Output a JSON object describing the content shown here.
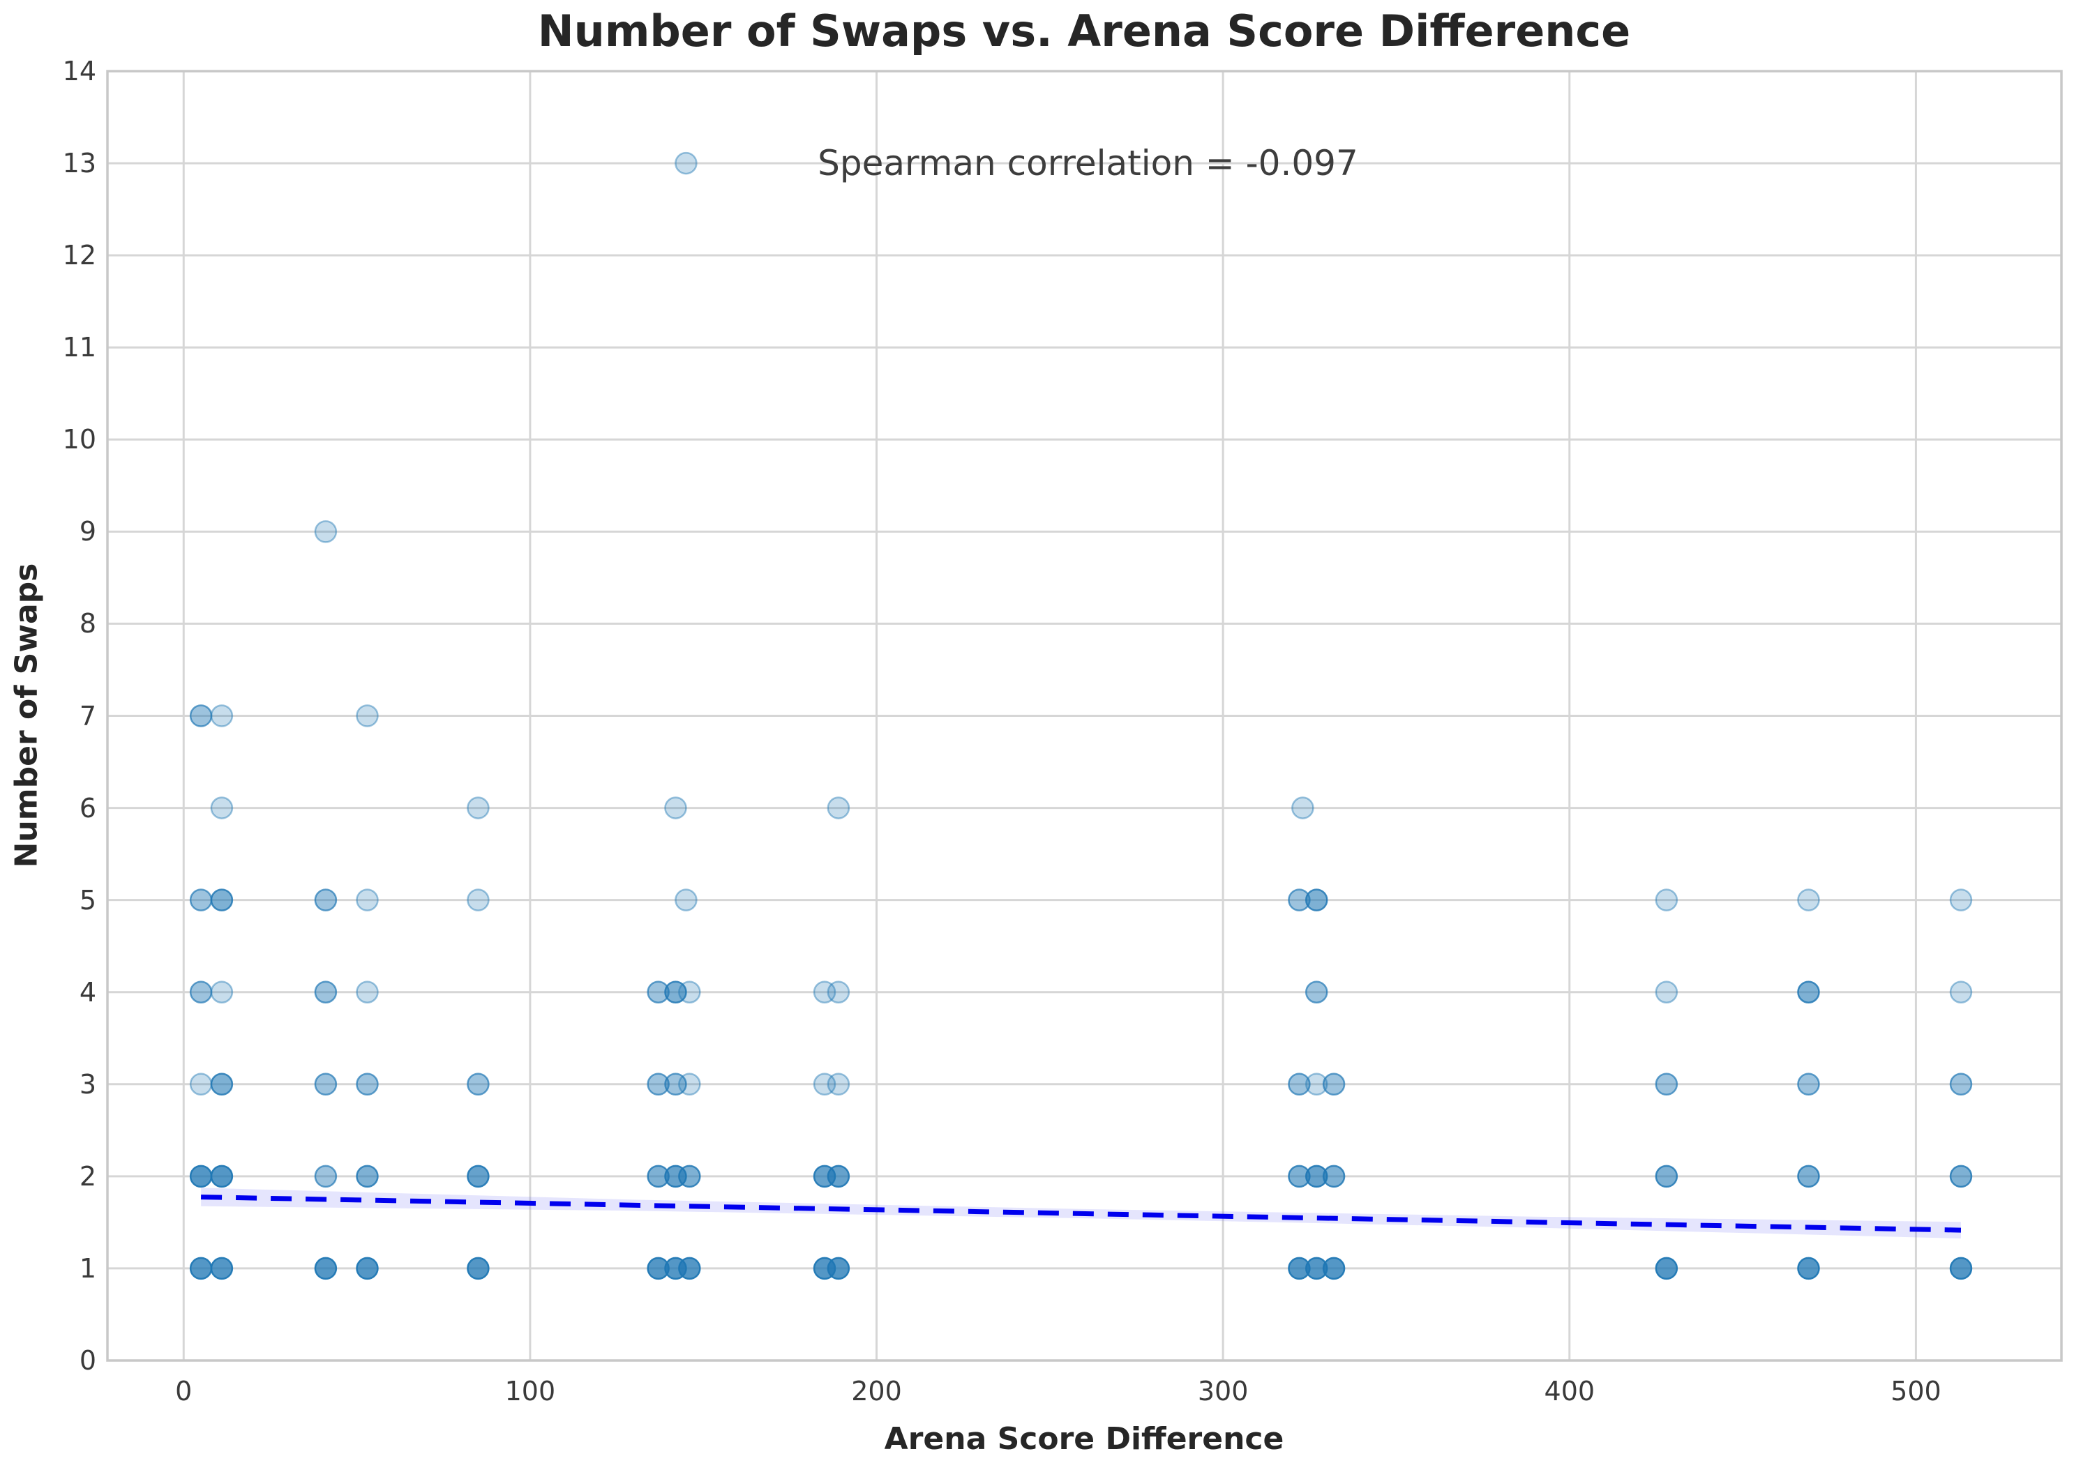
{
  "figure": {
    "title": "Number of Swaps vs. Arena Score Difference",
    "xlabel": "Arena Score Difference",
    "ylabel": "Number of Swaps"
  },
  "chart_data": {
    "type": "scatter",
    "title": "Number of Swaps vs. Arena Score Difference",
    "xlabel": "Arena Score Difference",
    "ylabel": "Number of Swaps",
    "xlim": [
      -22,
      542
    ],
    "ylim": [
      0,
      14
    ],
    "x_ticks": [
      0,
      100,
      200,
      300,
      400,
      500
    ],
    "y_ticks": [
      0,
      1,
      2,
      3,
      4,
      5,
      6,
      7,
      8,
      9,
      10,
      11,
      12,
      13,
      14
    ],
    "grid": true,
    "legend": "none",
    "annotation": {
      "text": "Spearman correlation = -0.097",
      "x": 261,
      "y": 13.0
    },
    "marker": {
      "color": "#1f77b4",
      "base_alpha": 0.25,
      "edge_alpha": 0.45,
      "radius": 15
    },
    "points": [
      {
        "x": 5,
        "y": 1,
        "n": 5
      },
      {
        "x": 11,
        "y": 1,
        "n": 5
      },
      {
        "x": 41,
        "y": 1,
        "n": 5
      },
      {
        "x": 53,
        "y": 1,
        "n": 5
      },
      {
        "x": 85,
        "y": 1,
        "n": 5
      },
      {
        "x": 137,
        "y": 1,
        "n": 5
      },
      {
        "x": 142,
        "y": 1,
        "n": 5
      },
      {
        "x": 146,
        "y": 1,
        "n": 5
      },
      {
        "x": 185,
        "y": 1,
        "n": 5
      },
      {
        "x": 189,
        "y": 1,
        "n": 5
      },
      {
        "x": 322,
        "y": 1,
        "n": 5
      },
      {
        "x": 327,
        "y": 1,
        "n": 5
      },
      {
        "x": 332,
        "y": 1,
        "n": 5
      },
      {
        "x": 428,
        "y": 1,
        "n": 5
      },
      {
        "x": 469,
        "y": 1,
        "n": 5
      },
      {
        "x": 513,
        "y": 1,
        "n": 5
      },
      {
        "x": 5,
        "y": 2,
        "n": 5
      },
      {
        "x": 11,
        "y": 2,
        "n": 5
      },
      {
        "x": 41,
        "y": 2,
        "n": 2
      },
      {
        "x": 53,
        "y": 2,
        "n": 3
      },
      {
        "x": 85,
        "y": 2,
        "n": 4
      },
      {
        "x": 137,
        "y": 2,
        "n": 3
      },
      {
        "x": 142,
        "y": 2,
        "n": 4
      },
      {
        "x": 146,
        "y": 2,
        "n": 3
      },
      {
        "x": 185,
        "y": 2,
        "n": 4
      },
      {
        "x": 189,
        "y": 2,
        "n": 4
      },
      {
        "x": 322,
        "y": 2,
        "n": 3
      },
      {
        "x": 327,
        "y": 2,
        "n": 4
      },
      {
        "x": 332,
        "y": 2,
        "n": 3
      },
      {
        "x": 428,
        "y": 2,
        "n": 3
      },
      {
        "x": 469,
        "y": 2,
        "n": 3
      },
      {
        "x": 513,
        "y": 2,
        "n": 3
      },
      {
        "x": 5,
        "y": 3,
        "n": 1
      },
      {
        "x": 11,
        "y": 3,
        "n": 3
      },
      {
        "x": 41,
        "y": 3,
        "n": 2
      },
      {
        "x": 53,
        "y": 3,
        "n": 2
      },
      {
        "x": 85,
        "y": 3,
        "n": 2
      },
      {
        "x": 137,
        "y": 3,
        "n": 2
      },
      {
        "x": 142,
        "y": 3,
        "n": 2
      },
      {
        "x": 146,
        "y": 3,
        "n": 1
      },
      {
        "x": 185,
        "y": 3,
        "n": 1
      },
      {
        "x": 189,
        "y": 3,
        "n": 1
      },
      {
        "x": 322,
        "y": 3,
        "n": 2
      },
      {
        "x": 327,
        "y": 3,
        "n": 1
      },
      {
        "x": 332,
        "y": 3,
        "n": 2
      },
      {
        "x": 428,
        "y": 3,
        "n": 2
      },
      {
        "x": 469,
        "y": 3,
        "n": 2
      },
      {
        "x": 513,
        "y": 3,
        "n": 2
      },
      {
        "x": 5,
        "y": 4,
        "n": 2
      },
      {
        "x": 11,
        "y": 4,
        "n": 1
      },
      {
        "x": 41,
        "y": 4,
        "n": 2
      },
      {
        "x": 53,
        "y": 4,
        "n": 1
      },
      {
        "x": 137,
        "y": 4,
        "n": 2
      },
      {
        "x": 142,
        "y": 4,
        "n": 3
      },
      {
        "x": 146,
        "y": 4,
        "n": 1
      },
      {
        "x": 185,
        "y": 4,
        "n": 1
      },
      {
        "x": 189,
        "y": 4,
        "n": 1
      },
      {
        "x": 327,
        "y": 4,
        "n": 2
      },
      {
        "x": 428,
        "y": 4,
        "n": 1
      },
      {
        "x": 469,
        "y": 4,
        "n": 3
      },
      {
        "x": 513,
        "y": 4,
        "n": 1
      },
      {
        "x": 5,
        "y": 5,
        "n": 2
      },
      {
        "x": 11,
        "y": 5,
        "n": 3
      },
      {
        "x": 41,
        "y": 5,
        "n": 2
      },
      {
        "x": 53,
        "y": 5,
        "n": 1
      },
      {
        "x": 85,
        "y": 5,
        "n": 1
      },
      {
        "x": 145,
        "y": 5,
        "n": 1
      },
      {
        "x": 322,
        "y": 5,
        "n": 2
      },
      {
        "x": 327,
        "y": 5,
        "n": 3
      },
      {
        "x": 428,
        "y": 5,
        "n": 1
      },
      {
        "x": 469,
        "y": 5,
        "n": 1
      },
      {
        "x": 513,
        "y": 5,
        "n": 1
      },
      {
        "x": 11,
        "y": 6,
        "n": 1
      },
      {
        "x": 85,
        "y": 6,
        "n": 1
      },
      {
        "x": 142,
        "y": 6,
        "n": 1
      },
      {
        "x": 189,
        "y": 6,
        "n": 1
      },
      {
        "x": 323,
        "y": 6,
        "n": 1
      },
      {
        "x": 5,
        "y": 7,
        "n": 2
      },
      {
        "x": 11,
        "y": 7,
        "n": 1
      },
      {
        "x": 53,
        "y": 7,
        "n": 1
      },
      {
        "x": 41,
        "y": 9,
        "n": 1
      },
      {
        "x": 145,
        "y": 13,
        "n": 1
      }
    ],
    "regression": {
      "style": "dashed",
      "color": "#0000ee",
      "x": [
        5,
        513
      ],
      "y": [
        1.775,
        1.415
      ]
    },
    "confidence_band": {
      "color": "rgba(110,110,245,0.18)",
      "x": [
        5,
        130,
        260,
        390,
        513
      ],
      "upper": [
        1.875,
        1.746,
        1.644,
        1.562,
        1.505
      ],
      "lower": [
        1.675,
        1.626,
        1.544,
        1.442,
        1.325
      ]
    },
    "colors": {
      "grid": "#d6d6d6",
      "spine": "#c8c8c8",
      "marker": "#1f77b4",
      "regression_line": "#0000ee",
      "background": "#ffffff"
    }
  }
}
